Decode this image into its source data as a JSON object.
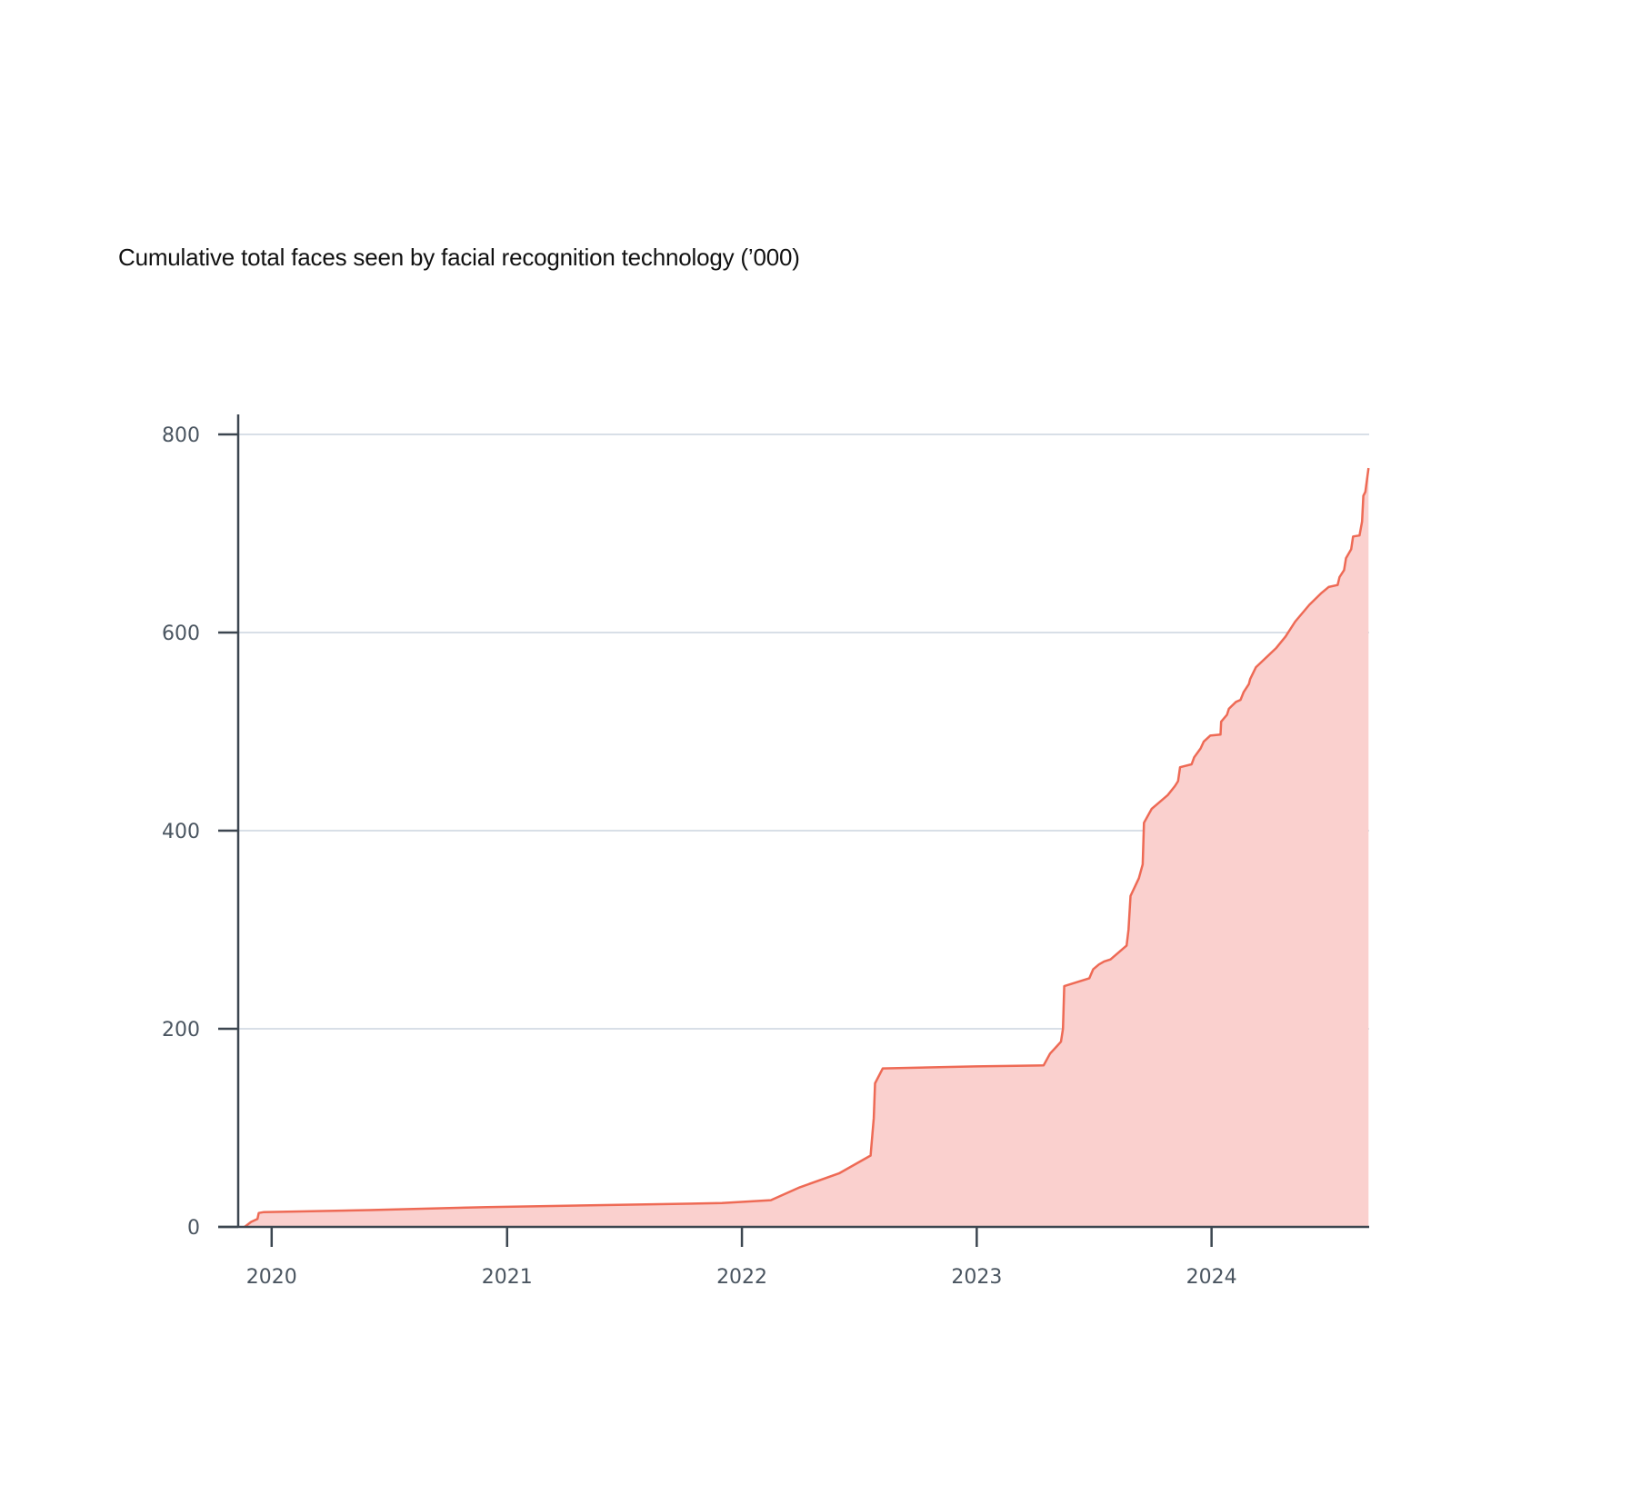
{
  "chart_data": {
    "type": "area",
    "title": "Cumulative total faces seen by facial recognition technology (’000)",
    "xlabel": "",
    "ylabel": "",
    "ylim": [
      0,
      800
    ],
    "xlim": [
      "2019-11-10",
      "2024-09-02"
    ],
    "y_ticks": [
      0,
      200,
      400,
      600,
      800
    ],
    "x_ticks": [
      {
        "label": "2020",
        "date": "2020-01-01"
      },
      {
        "label": "2021",
        "date": "2021-01-01"
      },
      {
        "label": "2022",
        "date": "2022-01-01"
      },
      {
        "label": "2023",
        "date": "2023-01-01"
      },
      {
        "label": "2024",
        "date": "2024-01-01"
      }
    ],
    "grid": true,
    "colors": {
      "line": "#ee6a55",
      "fill": "#fad0ce",
      "grid": "#d8dfe7",
      "axis": "#3c4650"
    },
    "series": [
      {
        "points": [
          [
            "2019-11-20",
            0
          ],
          [
            "2019-11-30",
            5
          ],
          [
            "2019-12-10",
            8
          ],
          [
            "2019-12-12",
            14
          ],
          [
            "2019-12-20",
            15
          ],
          [
            "2020-06-01",
            17
          ],
          [
            "2020-12-01",
            20
          ],
          [
            "2021-06-01",
            22
          ],
          [
            "2021-12-01",
            24
          ],
          [
            "2022-02-15",
            27
          ],
          [
            "2022-04-01",
            40
          ],
          [
            "2022-06-01",
            54
          ],
          [
            "2022-07-20",
            72
          ],
          [
            "2022-07-25",
            110
          ],
          [
            "2022-07-27",
            145
          ],
          [
            "2022-08-08",
            160
          ],
          [
            "2022-12-31",
            162
          ],
          [
            "2023-04-15",
            163
          ],
          [
            "2023-04-25",
            175
          ],
          [
            "2023-05-05",
            182
          ],
          [
            "2023-05-12",
            187
          ],
          [
            "2023-05-15",
            200
          ],
          [
            "2023-05-17",
            243
          ],
          [
            "2023-06-25",
            251
          ],
          [
            "2023-07-01",
            260
          ],
          [
            "2023-07-10",
            265
          ],
          [
            "2023-07-18",
            268
          ],
          [
            "2023-07-28",
            270
          ],
          [
            "2023-08-22",
            284
          ],
          [
            "2023-08-25",
            300
          ],
          [
            "2023-08-28",
            334
          ],
          [
            "2023-09-10",
            352
          ],
          [
            "2023-09-16",
            366
          ],
          [
            "2023-09-18",
            408
          ],
          [
            "2023-09-30",
            422
          ],
          [
            "2023-10-25",
            436
          ],
          [
            "2023-11-05",
            445
          ],
          [
            "2023-11-10",
            450
          ],
          [
            "2023-11-13",
            464
          ],
          [
            "2023-12-01",
            467
          ],
          [
            "2023-12-05",
            474
          ],
          [
            "2023-12-15",
            483
          ],
          [
            "2023-12-20",
            490
          ],
          [
            "2023-12-30",
            496
          ],
          [
            "2024-01-15",
            497
          ],
          [
            "2024-01-16",
            510
          ],
          [
            "2024-01-25",
            517
          ],
          [
            "2024-01-28",
            523
          ],
          [
            "2024-02-08",
            530
          ],
          [
            "2024-02-15",
            532
          ],
          [
            "2024-02-20",
            540
          ],
          [
            "2024-02-28",
            548
          ],
          [
            "2024-03-01",
            553
          ],
          [
            "2024-03-10",
            565
          ],
          [
            "2024-04-10",
            584
          ],
          [
            "2024-04-25",
            596
          ],
          [
            "2024-05-10",
            611
          ],
          [
            "2024-06-01",
            628
          ],
          [
            "2024-06-20",
            640
          ],
          [
            "2024-07-01",
            646
          ],
          [
            "2024-07-15",
            648
          ],
          [
            "2024-07-18",
            656
          ],
          [
            "2024-07-25",
            663
          ],
          [
            "2024-07-28",
            675
          ],
          [
            "2024-08-05",
            684
          ],
          [
            "2024-08-08",
            697
          ],
          [
            "2024-08-18",
            698
          ],
          [
            "2024-08-22",
            712
          ],
          [
            "2024-08-24",
            738
          ],
          [
            "2024-08-27",
            742
          ],
          [
            "2024-09-01",
            766
          ]
        ]
      }
    ]
  }
}
